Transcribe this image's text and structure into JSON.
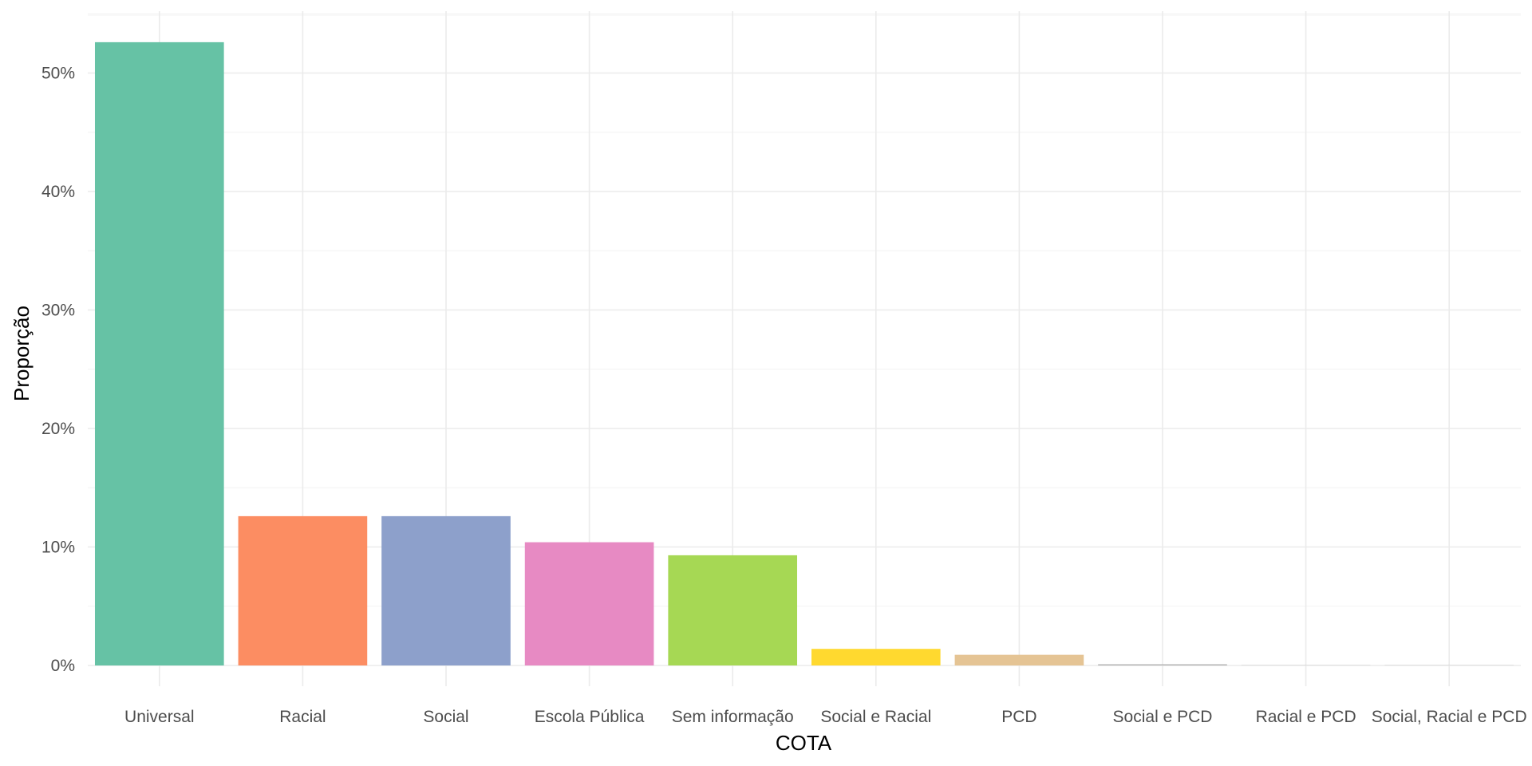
{
  "chart_data": {
    "type": "bar",
    "title": "",
    "xlabel": "COTA",
    "ylabel": "Proporção",
    "categories": [
      "Universal",
      "Racial",
      "Social",
      "Escola Pública",
      "Sem informação",
      "Social e Racial",
      "PCD",
      "Social e PCD",
      "Racial e PCD",
      "Social, Racial e PCD"
    ],
    "values": [
      52.6,
      12.6,
      12.6,
      10.4,
      9.3,
      1.4,
      0.9,
      0.1,
      0.02,
      0.02
    ],
    "value_unit": "%",
    "ylim": [
      0,
      55
    ],
    "yticks": [
      0,
      10,
      20,
      30,
      40,
      50
    ],
    "ytick_labels": [
      "0%",
      "10%",
      "20%",
      "30%",
      "40%",
      "50%"
    ],
    "colors": [
      "#66c2a5",
      "#fc8d62",
      "#8da0cb",
      "#e78ac3",
      "#a6d854",
      "#ffd92f",
      "#e5c494",
      "#b3b3b3",
      "#b3b3b3",
      "#b3b3b3"
    ],
    "grid": true,
    "legend": "none"
  }
}
